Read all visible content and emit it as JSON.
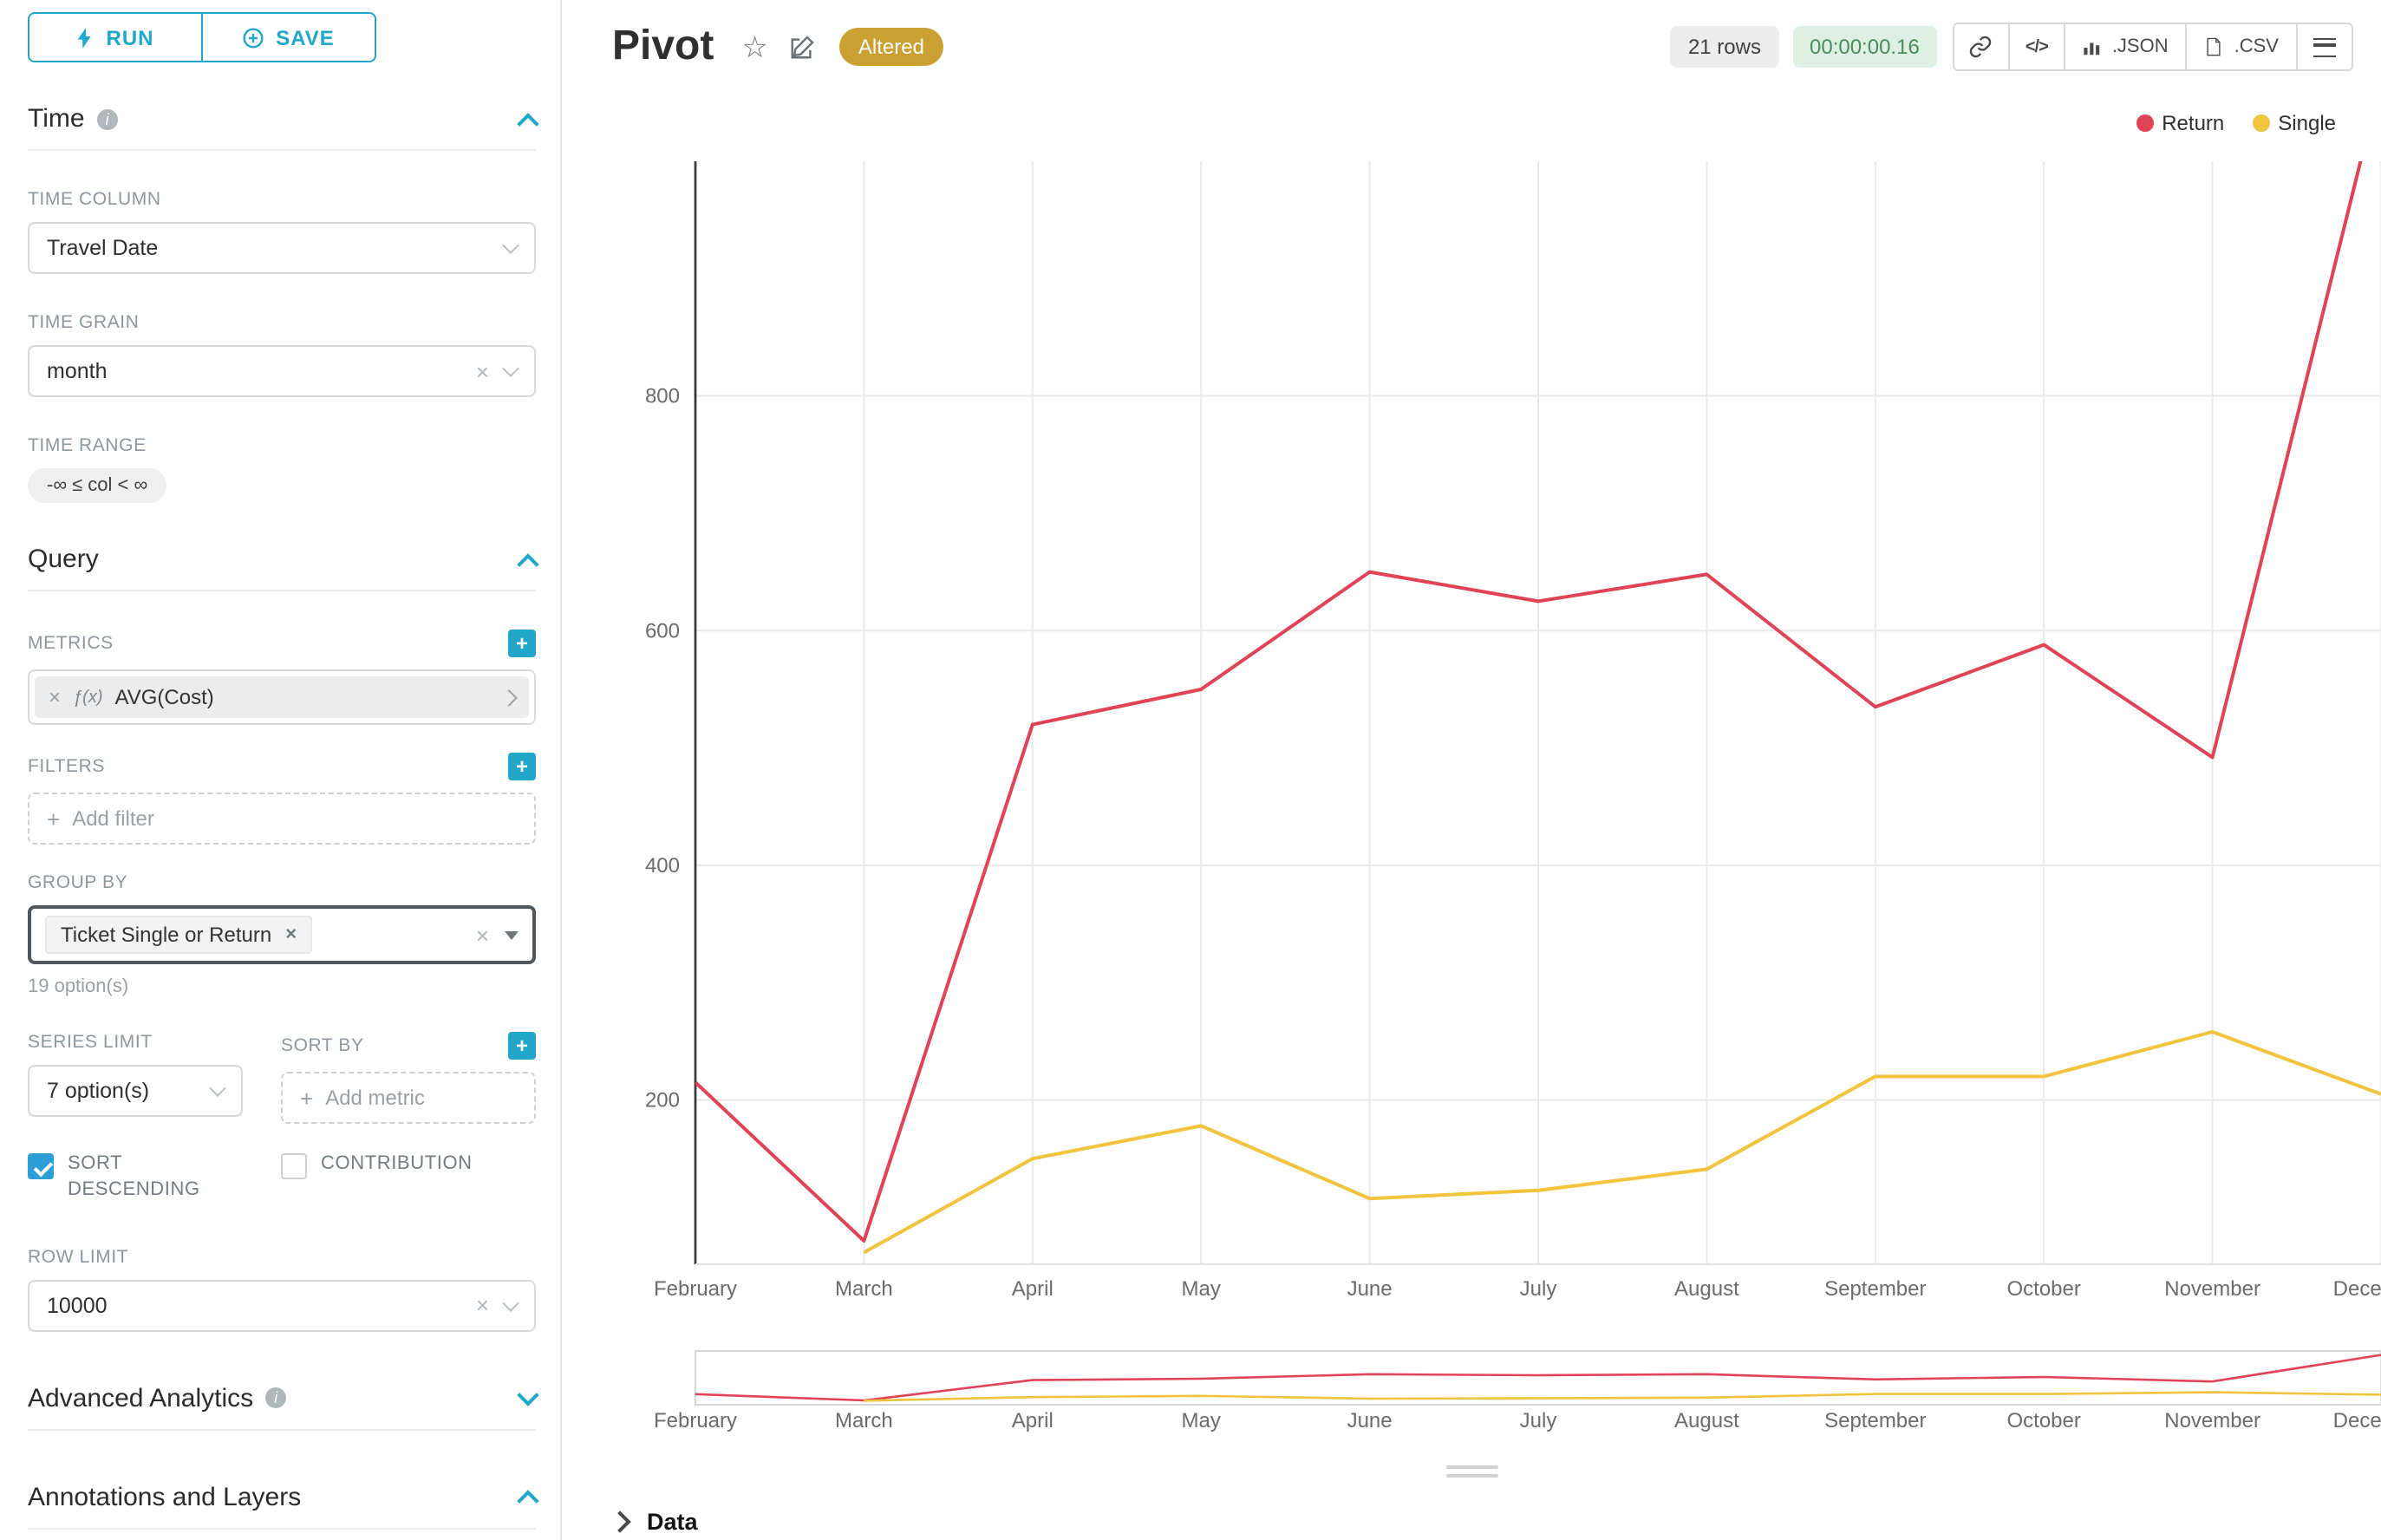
{
  "icons": {
    "plus": "+",
    "close": "×",
    "star": "☆",
    "info": "i",
    "fx": "ƒ(x)",
    "code": "</>"
  },
  "sidebar": {
    "run_label": "RUN",
    "save_label": "SAVE",
    "time_title": "Time",
    "time_column_label": "TIME COLUMN",
    "time_column_value": "Travel Date",
    "time_grain_label": "TIME GRAIN",
    "time_grain_value": "month",
    "time_range_label": "TIME RANGE",
    "time_range_value": "-∞ ≤ col < ∞",
    "query_title": "Query",
    "metrics_label": "METRICS",
    "metric_value": "AVG(Cost)",
    "filters_label": "FILTERS",
    "add_filter_label": "Add filter",
    "group_by_label": "GROUP BY",
    "group_by_tag": "Ticket Single or Return",
    "group_by_hint": "19 option(s)",
    "series_limit_label": "SERIES LIMIT",
    "series_limit_value": "7 option(s)",
    "sort_by_label": "SORT BY",
    "add_metric_label": "Add metric",
    "sort_descending_label": "SORT DESCENDING",
    "contribution_label": "CONTRIBUTION",
    "row_limit_label": "ROW LIMIT",
    "row_limit_value": "10000",
    "advanced_title": "Advanced Analytics",
    "annotations_title": "Annotations and Layers"
  },
  "header": {
    "title": "Pivot",
    "altered_badge": "Altered",
    "rows_badge": "21 rows",
    "timer_badge": "00:00:00.16",
    "json_label": ".JSON",
    "csv_label": ".CSV"
  },
  "footer": {
    "data_label": "Data"
  },
  "colors": {
    "primary": "#20a7c9",
    "return_series": "#e04355",
    "single_series": "#f2c33d",
    "altered_badge_bg": "#cba032",
    "timer_bg": "#def0e4",
    "timer_text": "#4b8b5a",
    "checkbox_checked": "#2e9fd6"
  },
  "chart_data": {
    "type": "line",
    "title": "Pivot",
    "x": [
      "February",
      "March",
      "April",
      "May",
      "June",
      "July",
      "August",
      "September",
      "October",
      "November",
      "December"
    ],
    "series": [
      {
        "name": "Return",
        "color": "#e04355",
        "values": [
          215,
          80,
          520,
          550,
          650,
          625,
          648,
          535,
          588,
          492,
          1070
        ]
      },
      {
        "name": "Single",
        "color": "#f2c33d",
        "values": [
          null,
          70,
          150,
          178,
          116,
          123,
          141,
          220,
          220,
          258,
          205
        ]
      }
    ],
    "xlabel": "",
    "ylabel": "",
    "yticks": [
      200,
      400,
      600,
      800
    ],
    "ylim": [
      60,
      1000
    ],
    "grid": true,
    "legend_position": "top-right",
    "has_range_slider": true
  }
}
